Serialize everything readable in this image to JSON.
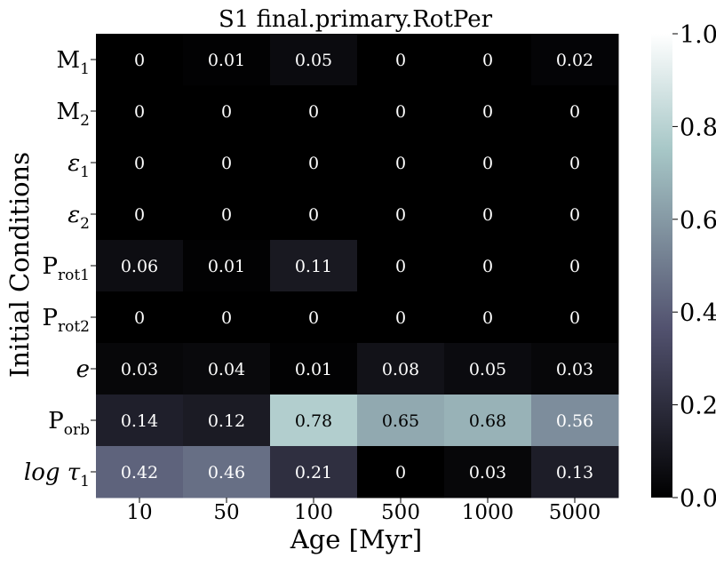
{
  "chart_data": {
    "type": "heatmap",
    "title": "S1 final.primary.RotPer",
    "xlabel": "Age [Myr]",
    "ylabel": "Initial Conditions",
    "x_categories": [
      "10",
      "50",
      "100",
      "500",
      "1000",
      "5000"
    ],
    "y_categories": [
      {
        "base": "M",
        "sub": "1"
      },
      {
        "base": "M",
        "sub": "2"
      },
      {
        "base": "ε",
        "sub": "1"
      },
      {
        "base": "ε",
        "sub": "2"
      },
      {
        "base": "P",
        "sub": "rot1"
      },
      {
        "base": "P",
        "sub": "rot2"
      },
      {
        "base": "e",
        "sub": ""
      },
      {
        "base": "P",
        "sub": "orb"
      },
      {
        "base": "log τ",
        "sub": "1"
      }
    ],
    "values": [
      [
        0,
        0.01,
        0.05,
        0,
        0,
        0.02
      ],
      [
        0,
        0,
        0,
        0,
        0,
        0
      ],
      [
        0,
        0,
        0,
        0,
        0,
        0
      ],
      [
        0,
        0,
        0,
        0,
        0,
        0
      ],
      [
        0.06,
        0.01,
        0.11,
        0,
        0,
        0
      ],
      [
        0,
        0,
        0,
        0,
        0,
        0
      ],
      [
        0.03,
        0.04,
        0.01,
        0.08,
        0.05,
        0.03
      ],
      [
        0.14,
        0.12,
        0.78,
        0.65,
        0.68,
        0.56
      ],
      [
        0.42,
        0.46,
        0.21,
        0,
        0.03,
        0.13
      ]
    ],
    "cell_labels": [
      [
        "0",
        "0.01",
        "0.05",
        "0",
        "0",
        "0.02"
      ],
      [
        "0",
        "0",
        "0",
        "0",
        "0",
        "0"
      ],
      [
        "0",
        "0",
        "0",
        "0",
        "0",
        "0"
      ],
      [
        "0",
        "0",
        "0",
        "0",
        "0",
        "0"
      ],
      [
        "0.06",
        "0.01",
        "0.11",
        "0",
        "0",
        "0"
      ],
      [
        "0",
        "0",
        "0",
        "0",
        "0",
        "0"
      ],
      [
        "0.03",
        "0.04",
        "0.01",
        "0.08",
        "0.05",
        "0.03"
      ],
      [
        "0.14",
        "0.12",
        "0.78",
        "0.65",
        "0.68",
        "0.56"
      ],
      [
        "0.42",
        "0.46",
        "0.21",
        "0",
        "0.03",
        "0.13"
      ]
    ],
    "colorbar": {
      "colormap": "bone",
      "range": [
        0.0,
        1.0
      ],
      "ticks": [
        "0.0",
        "0.2",
        "0.4",
        "0.6",
        "0.8",
        "1.0"
      ]
    },
    "grid": false,
    "legend": "colorbar-right"
  }
}
